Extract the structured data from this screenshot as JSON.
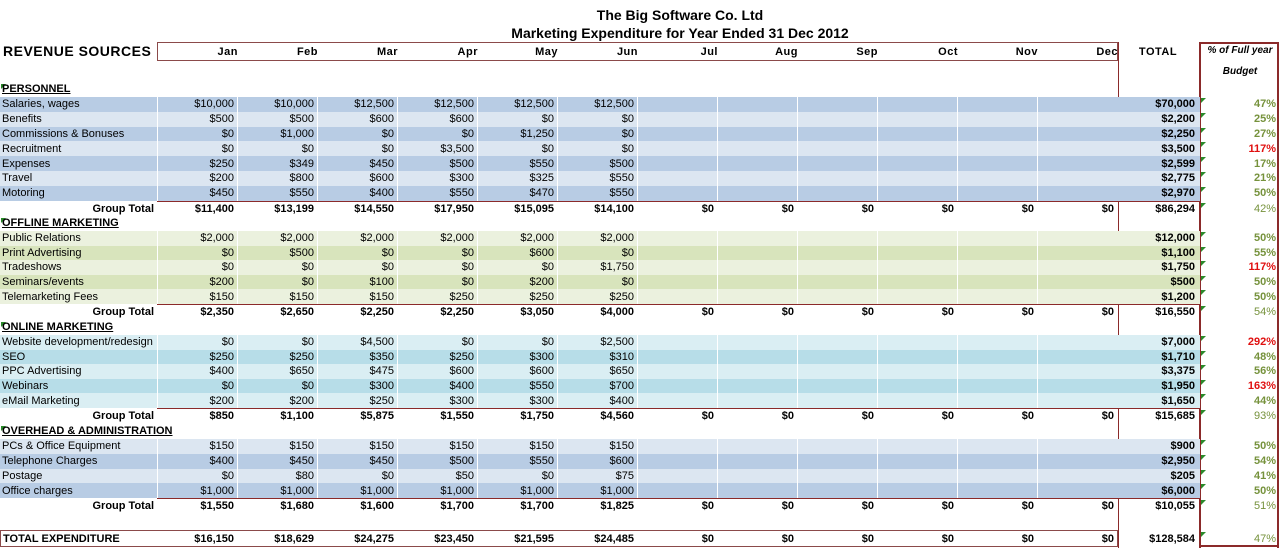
{
  "title": "The Big Software Co. Ltd",
  "subtitle": "Marketing Expenditure for Year Ended 31 Dec 2012",
  "header": {
    "label": "REVENUE SOURCES",
    "months": [
      "Jan",
      "Feb",
      "Mar",
      "Apr",
      "May",
      "Jun",
      "Jul",
      "Aug",
      "Sep",
      "Oct",
      "Nov",
      "Dec"
    ],
    "total": "TOTAL",
    "pct_line1": "% of Full year",
    "pct_line2": "Budget"
  },
  "colors": {
    "pct_ok": "#76923c",
    "pct_over": "#e01010",
    "border": "#8b2a2a"
  },
  "group_total_label": "Group Total",
  "sections": [
    {
      "name": "PERSONNEL",
      "colors": [
        "#b8cce4",
        "#dce6f1"
      ],
      "rows": [
        {
          "label": "Salaries, wages",
          "values": [
            "$10,000",
            "$10,000",
            "$12,500",
            "$12,500",
            "$12,500",
            "$12,500"
          ],
          "total": "$70,000",
          "pct": "47%",
          "over": false
        },
        {
          "label": "Benefits",
          "values": [
            "$500",
            "$500",
            "$600",
            "$600",
            "$0",
            "$0"
          ],
          "total": "$2,200",
          "pct": "25%",
          "over": false
        },
        {
          "label": "Commissions & Bonuses",
          "values": [
            "$0",
            "$1,000",
            "$0",
            "$0",
            "$1,250",
            "$0"
          ],
          "total": "$2,250",
          "pct": "27%",
          "over": false
        },
        {
          "label": "Recruitment",
          "values": [
            "$0",
            "$0",
            "$0",
            "$3,500",
            "$0",
            "$0"
          ],
          "total": "$3,500",
          "pct": "117%",
          "over": true
        },
        {
          "label": "Expenses",
          "values": [
            "$250",
            "$349",
            "$450",
            "$500",
            "$550",
            "$500"
          ],
          "total": "$2,599",
          "pct": "17%",
          "over": false
        },
        {
          "label": "Travel",
          "values": [
            "$200",
            "$800",
            "$600",
            "$300",
            "$325",
            "$550"
          ],
          "total": "$2,775",
          "pct": "21%",
          "over": false
        },
        {
          "label": "Motoring",
          "values": [
            "$450",
            "$550",
            "$400",
            "$550",
            "$470",
            "$550"
          ],
          "total": "$2,970",
          "pct": "50%",
          "over": false
        }
      ],
      "group_total": {
        "values": [
          "$11,400",
          "$13,199",
          "$14,550",
          "$17,950",
          "$15,095",
          "$14,100",
          "$0",
          "$0",
          "$0",
          "$0",
          "$0",
          "$0"
        ],
        "total": "$86,294",
        "pct": "42%"
      }
    },
    {
      "name": "OFFLINE MARKETING",
      "colors": [
        "#ebf1de",
        "#d8e4bc"
      ],
      "rows": [
        {
          "label": "Public Relations",
          "values": [
            "$2,000",
            "$2,000",
            "$2,000",
            "$2,000",
            "$2,000",
            "$2,000"
          ],
          "total": "$12,000",
          "pct": "50%",
          "over": false
        },
        {
          "label": "Print Advertising",
          "values": [
            "$0",
            "$500",
            "$0",
            "$0",
            "$600",
            "$0"
          ],
          "total": "$1,100",
          "pct": "55%",
          "over": false
        },
        {
          "label": "Tradeshows",
          "values": [
            "$0",
            "$0",
            "$0",
            "$0",
            "$0",
            "$1,750"
          ],
          "total": "$1,750",
          "pct": "117%",
          "over": true
        },
        {
          "label": "Seminars/events",
          "values": [
            "$200",
            "$0",
            "$100",
            "$0",
            "$200",
            "$0"
          ],
          "total": "$500",
          "pct": "50%",
          "over": false
        },
        {
          "label": "Telemarketing Fees",
          "values": [
            "$150",
            "$150",
            "$150",
            "$250",
            "$250",
            "$250"
          ],
          "total": "$1,200",
          "pct": "50%",
          "over": false
        }
      ],
      "group_total": {
        "values": [
          "$2,350",
          "$2,650",
          "$2,250",
          "$2,250",
          "$3,050",
          "$4,000",
          "$0",
          "$0",
          "$0",
          "$0",
          "$0",
          "$0"
        ],
        "total": "$16,550",
        "pct": "54%"
      }
    },
    {
      "name": "ONLINE MARKETING",
      "colors": [
        "#daeef3",
        "#b7dde8"
      ],
      "rows": [
        {
          "label": "Website development/redesign",
          "values": [
            "$0",
            "$0",
            "$4,500",
            "$0",
            "$0",
            "$2,500"
          ],
          "total": "$7,000",
          "pct": "292%",
          "over": true
        },
        {
          "label": "SEO",
          "values": [
            "$250",
            "$250",
            "$350",
            "$250",
            "$300",
            "$310"
          ],
          "total": "$1,710",
          "pct": "48%",
          "over": false
        },
        {
          "label": "PPC Advertising",
          "values": [
            "$400",
            "$650",
            "$475",
            "$600",
            "$600",
            "$650"
          ],
          "total": "$3,375",
          "pct": "56%",
          "over": false
        },
        {
          "label": "Webinars",
          "values": [
            "$0",
            "$0",
            "$300",
            "$400",
            "$550",
            "$700"
          ],
          "total": "$1,950",
          "pct": "163%",
          "over": true
        },
        {
          "label": "eMail Marketing",
          "values": [
            "$200",
            "$200",
            "$250",
            "$300",
            "$300",
            "$400"
          ],
          "total": "$1,650",
          "pct": "44%",
          "over": false
        }
      ],
      "group_total": {
        "values": [
          "$850",
          "$1,100",
          "$5,875",
          "$1,550",
          "$1,750",
          "$4,560",
          "$0",
          "$0",
          "$0",
          "$0",
          "$0",
          "$0"
        ],
        "total": "$15,685",
        "pct": "93%"
      }
    },
    {
      "name": "OVERHEAD & ADMINISTRATION",
      "colors": [
        "#dce6f1",
        "#b8cce4"
      ],
      "rows": [
        {
          "label": "PCs & Office Equipment",
          "values": [
            "$150",
            "$150",
            "$150",
            "$150",
            "$150",
            "$150"
          ],
          "total": "$900",
          "pct": "50%",
          "over": false
        },
        {
          "label": "Telephone Charges",
          "values": [
            "$400",
            "$450",
            "$450",
            "$500",
            "$550",
            "$600"
          ],
          "total": "$2,950",
          "pct": "54%",
          "over": false
        },
        {
          "label": "Postage",
          "values": [
            "$0",
            "$80",
            "$0",
            "$50",
            "$0",
            "$75"
          ],
          "total": "$205",
          "pct": "41%",
          "over": false
        },
        {
          "label": "Office charges",
          "values": [
            "$1,000",
            "$1,000",
            "$1,000",
            "$1,000",
            "$1,000",
            "$1,000"
          ],
          "total": "$6,000",
          "pct": "50%",
          "over": false
        }
      ],
      "group_total": {
        "values": [
          "$1,550",
          "$1,680",
          "$1,600",
          "$1,700",
          "$1,700",
          "$1,825",
          "$0",
          "$0",
          "$0",
          "$0",
          "$0",
          "$0"
        ],
        "total": "$10,055",
        "pct": "51%"
      }
    }
  ],
  "total_expenditure": {
    "label": "TOTAL EXPENDITURE",
    "values": [
      "$16,150",
      "$18,629",
      "$24,275",
      "$23,450",
      "$21,595",
      "$24,485",
      "$0",
      "$0",
      "$0",
      "$0",
      "$0",
      "$0"
    ],
    "total": "$128,584",
    "pct": "47%"
  }
}
